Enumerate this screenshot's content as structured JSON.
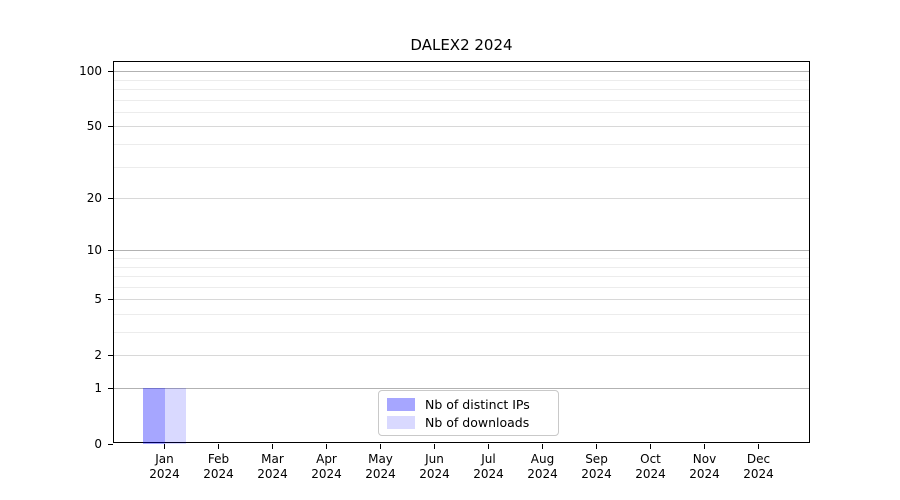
{
  "chart_data": {
    "type": "bar",
    "title": "DALEX2 2024",
    "categories": [
      {
        "month": "Jan",
        "year": "2024"
      },
      {
        "month": "Feb",
        "year": "2024"
      },
      {
        "month": "Mar",
        "year": "2024"
      },
      {
        "month": "Apr",
        "year": "2024"
      },
      {
        "month": "May",
        "year": "2024"
      },
      {
        "month": "Jun",
        "year": "2024"
      },
      {
        "month": "Jul",
        "year": "2024"
      },
      {
        "month": "Aug",
        "year": "2024"
      },
      {
        "month": "Sep",
        "year": "2024"
      },
      {
        "month": "Oct",
        "year": "2024"
      },
      {
        "month": "Nov",
        "year": "2024"
      },
      {
        "month": "Dec",
        "year": "2024"
      }
    ],
    "series": [
      {
        "name": "Nb of distinct IPs",
        "color": "rgba(0,0,255,0.35)",
        "values": [
          1,
          0,
          0,
          0,
          0,
          0,
          0,
          0,
          0,
          0,
          0,
          0
        ]
      },
      {
        "name": "Nb of downloads",
        "color": "rgba(0,0,255,0.15)",
        "values": [
          1,
          0,
          0,
          0,
          0,
          0,
          0,
          0,
          0,
          0,
          0,
          0
        ]
      }
    ],
    "yscale": "log1p",
    "ylim": [
      0,
      112
    ],
    "yticks_labeled": [
      0,
      1,
      2,
      5,
      10,
      20,
      50,
      100
    ],
    "yticks_decade": [
      1,
      10,
      100
    ],
    "yticks_minor": [
      3,
      4,
      6,
      7,
      8,
      9,
      30,
      40,
      60,
      70,
      80,
      90
    ],
    "grid": true,
    "legend_position": "bottom-center"
  }
}
